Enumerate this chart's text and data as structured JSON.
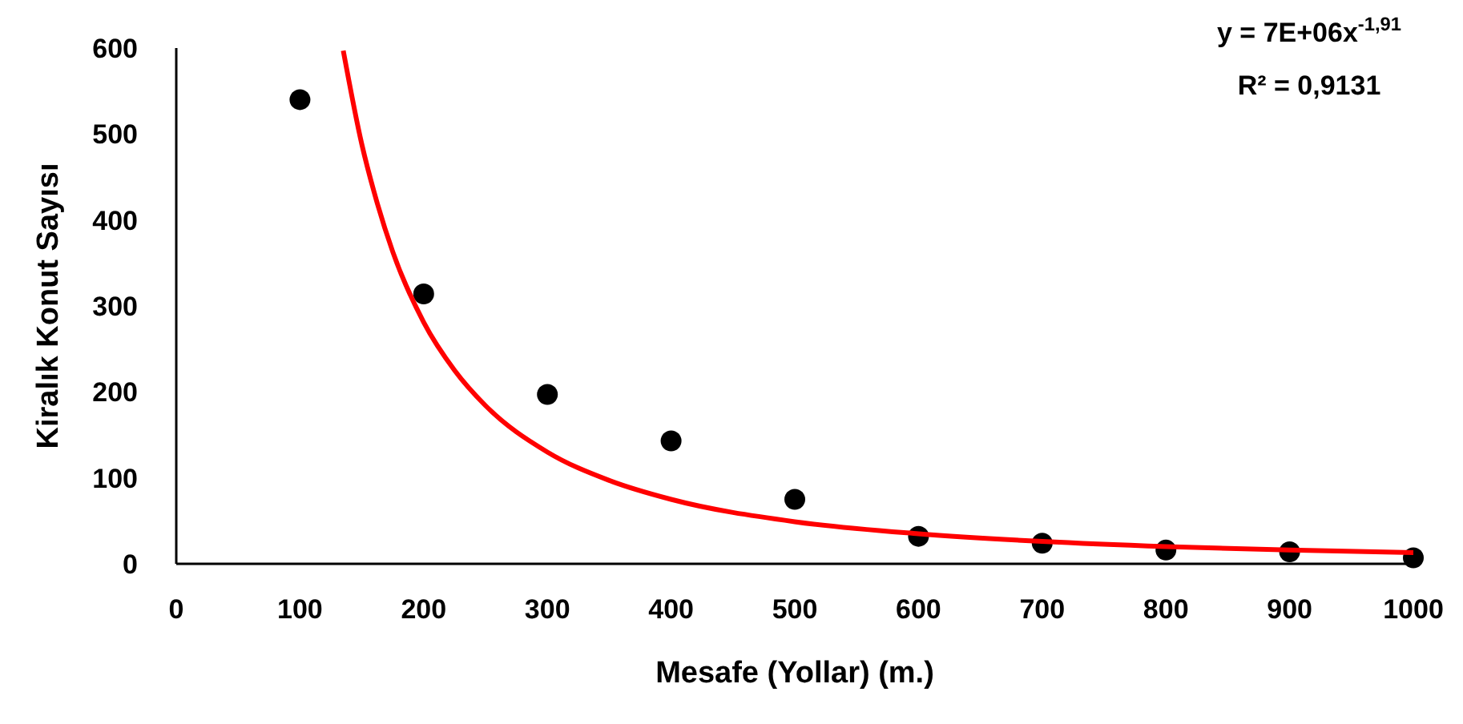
{
  "chart_data": {
    "type": "scatter",
    "xlabel": "Mesafe (Yollar) (m.)",
    "ylabel": "Kiralık Konut Sayısı",
    "xlim": [
      0,
      1000
    ],
    "xticks": [
      0,
      100,
      200,
      300,
      400,
      500,
      600,
      700,
      800,
      900,
      1000
    ],
    "ylim": [
      0,
      600
    ],
    "yticks": [
      0,
      100,
      200,
      300,
      400,
      500,
      600
    ],
    "grid": false,
    "annotations": [
      "y = 7E+06x$^{-1,91}$",
      "R² = 0,9131"
    ],
    "series": [
      {
        "marker": "circle",
        "color": "#000000",
        "x": [
          100,
          200,
          300,
          400,
          500,
          600,
          700,
          800,
          900,
          1000
        ],
        "values": [
          540,
          314,
          197,
          143,
          75,
          32,
          24,
          16,
          14,
          7
        ]
      },
      {
        "type": "line",
        "marker": "none",
        "color": "#ff0000",
        "x": [
          135,
          150,
          160,
          175,
          200,
          225,
          250,
          300,
          350,
          400,
          500,
          600,
          700,
          800,
          900,
          1000
        ],
        "values": [
          597,
          488,
          432,
          363,
          281,
          225,
          184,
          130,
          97,
          75,
          49,
          35,
          26,
          20,
          16,
          13
        ]
      }
    ]
  }
}
